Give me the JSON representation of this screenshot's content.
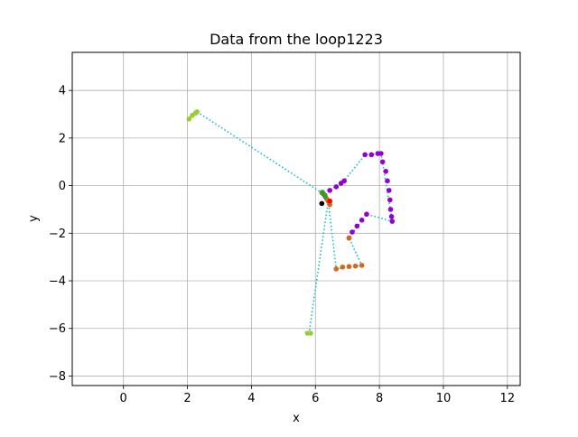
{
  "chart_data": {
    "type": "scatter",
    "title": "Data from the loop1223",
    "xlabel": "x",
    "ylabel": "y",
    "xlim": [
      -1.6,
      12.4
    ],
    "ylim": [
      -8.4,
      5.6
    ],
    "xticks": [
      0,
      2,
      4,
      6,
      8,
      10,
      12
    ],
    "yticks": [
      -8,
      -6,
      -4,
      -2,
      0,
      2,
      4
    ],
    "grid": true,
    "connector": {
      "color": "#17becf",
      "style": "dotted",
      "points": [
        [
          2.3,
          3.1
        ],
        [
          6.25,
          -0.35
        ],
        [
          6.9,
          0.2
        ],
        [
          7.55,
          1.3
        ],
        [
          8.05,
          1.35
        ],
        [
          8.4,
          -1.5
        ],
        [
          7.6,
          -1.2
        ],
        [
          7.05,
          -2.2
        ],
        [
          7.45,
          -3.35
        ],
        [
          6.65,
          -3.5
        ],
        [
          6.4,
          -0.65
        ],
        [
          5.8,
          -6.2
        ]
      ]
    },
    "series": [
      {
        "color": "#9acd32",
        "points": [
          [
            2.05,
            2.8
          ],
          [
            2.15,
            2.95
          ],
          [
            2.25,
            3.05
          ],
          [
            2.3,
            3.1
          ]
        ]
      },
      {
        "color": "#9400d3",
        "points": [
          [
            6.25,
            -0.35
          ],
          [
            6.45,
            -0.2
          ],
          [
            6.65,
            -0.05
          ],
          [
            6.8,
            0.1
          ],
          [
            6.9,
            0.2
          ]
        ]
      },
      {
        "color": "#9400d3",
        "points": [
          [
            7.55,
            1.3
          ],
          [
            7.75,
            1.3
          ],
          [
            7.95,
            1.35
          ],
          [
            8.05,
            1.35
          ],
          [
            8.1,
            1.0
          ],
          [
            8.2,
            0.6
          ],
          [
            8.25,
            0.2
          ],
          [
            8.3,
            -0.2
          ],
          [
            8.33,
            -0.6
          ],
          [
            8.35,
            -1.0
          ],
          [
            8.38,
            -1.3
          ],
          [
            8.4,
            -1.5
          ]
        ]
      },
      {
        "color": "#9400d3",
        "points": [
          [
            7.6,
            -1.2
          ],
          [
            7.45,
            -1.45
          ],
          [
            7.3,
            -1.7
          ],
          [
            7.15,
            -1.95
          ],
          [
            7.05,
            -2.2
          ]
        ]
      },
      {
        "color": "#d2691e",
        "points": [
          [
            7.05,
            -2.2
          ]
        ]
      },
      {
        "color": "#d2691e",
        "points": [
          [
            7.45,
            -3.35
          ],
          [
            7.25,
            -3.38
          ],
          [
            7.05,
            -3.4
          ],
          [
            6.85,
            -3.42
          ],
          [
            6.65,
            -3.5
          ]
        ]
      },
      {
        "color": "#d2691e",
        "points": [
          [
            6.2,
            -0.3
          ],
          [
            6.3,
            -0.4
          ],
          [
            6.35,
            -0.55
          ],
          [
            6.4,
            -0.65
          ],
          [
            6.45,
            -0.8
          ]
        ]
      },
      {
        "color": "#2ca02c",
        "points": [
          [
            6.22,
            -0.28
          ],
          [
            6.3,
            -0.45
          ]
        ]
      },
      {
        "color": "#ff0000",
        "points": [
          [
            6.45,
            -0.65
          ]
        ]
      },
      {
        "color": "#000000",
        "points": [
          [
            6.2,
            -0.75
          ]
        ]
      },
      {
        "color": "#9acd32",
        "points": [
          [
            5.75,
            -6.2
          ],
          [
            5.85,
            -6.2
          ]
        ]
      }
    ]
  }
}
